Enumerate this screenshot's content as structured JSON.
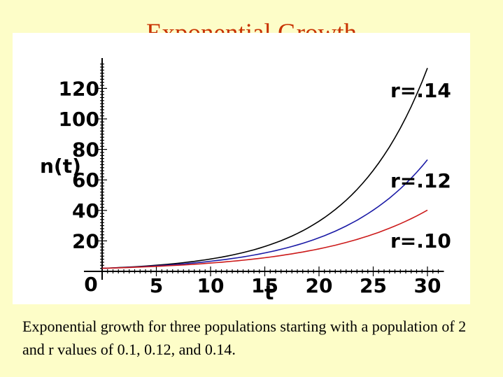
{
  "title": "Exponential Growth",
  "caption": "Exponential growth for three populations starting with a population of 2 and r values of 0.1, 0.12, and 0.14.",
  "chart_data": {
    "type": "line",
    "title": "Exponential Growth",
    "xlabel": "t",
    "ylabel": "n(t)",
    "xlim": [
      0,
      31
    ],
    "ylim": [
      0,
      136
    ],
    "x_ticks": [
      5,
      10,
      15,
      20,
      25,
      30
    ],
    "y_ticks": [
      20,
      40,
      60,
      80,
      100,
      120
    ],
    "origin_label": "0",
    "grid": false,
    "series": [
      {
        "name": "r=.14",
        "color": "#000000",
        "x": [
          0,
          5,
          10,
          15,
          20,
          25,
          30
        ],
        "values": [
          2,
          4.03,
          8.11,
          16.33,
          32.89,
          66.23,
          133.37
        ]
      },
      {
        "name": "r=.12",
        "color": "#1a1aa6",
        "x": [
          0,
          5,
          10,
          15,
          20,
          25,
          30
        ],
        "values": [
          2,
          3.64,
          6.64,
          12.1,
          22.05,
          40.17,
          73.19
        ]
      },
      {
        "name": "r=.10",
        "color": "#cc1a1a",
        "x": [
          0,
          5,
          10,
          15,
          20,
          25,
          30
        ],
        "values": [
          2,
          3.3,
          5.44,
          8.96,
          14.78,
          24.37,
          40.17
        ]
      }
    ]
  }
}
